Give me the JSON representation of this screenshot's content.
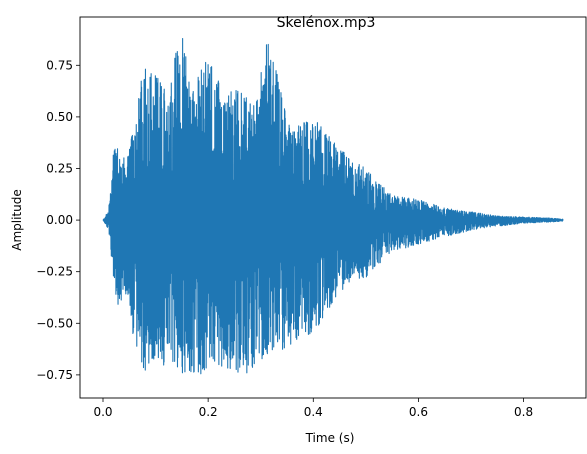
{
  "chart_data": {
    "type": "line",
    "title": "Skelénox.mp3",
    "xlabel": "Time (s)",
    "ylabel": "Amplitude",
    "xlim": [
      -0.04375,
      0.91875
    ],
    "ylim": [
      -0.862,
      0.984
    ],
    "x_ticks": [
      0.0,
      0.2,
      0.4,
      0.6,
      0.8
    ],
    "x_tick_labels": [
      "0.0",
      "0.2",
      "0.4",
      "0.6",
      "0.8"
    ],
    "y_ticks": [
      -0.75,
      -0.5,
      -0.25,
      0.0,
      0.25,
      0.5,
      0.75
    ],
    "y_tick_labels": [
      "−0.75",
      "−0.50",
      "−0.25",
      "0.00",
      "0.25",
      "0.50",
      "0.75"
    ],
    "grid": false,
    "legend": "none",
    "series": [
      {
        "color": "#1f77b4",
        "duration": 0.875,
        "envelope_pos": [
          [
            0.0,
            0.0
          ],
          [
            0.005,
            0.02
          ],
          [
            0.01,
            0.05
          ],
          [
            0.015,
            0.15
          ],
          [
            0.02,
            0.38
          ],
          [
            0.025,
            0.41
          ],
          [
            0.035,
            0.3
          ],
          [
            0.05,
            0.34
          ],
          [
            0.065,
            0.56
          ],
          [
            0.08,
            0.8
          ],
          [
            0.1,
            0.7
          ],
          [
            0.12,
            0.66
          ],
          [
            0.15,
            0.91
          ],
          [
            0.17,
            0.63
          ],
          [
            0.2,
            0.82
          ],
          [
            0.23,
            0.6
          ],
          [
            0.26,
            0.65
          ],
          [
            0.29,
            0.55
          ],
          [
            0.31,
            0.89
          ],
          [
            0.33,
            0.75
          ],
          [
            0.36,
            0.45
          ],
          [
            0.4,
            0.5
          ],
          [
            0.45,
            0.35
          ],
          [
            0.5,
            0.25
          ],
          [
            0.55,
            0.12
          ],
          [
            0.6,
            0.1
          ],
          [
            0.65,
            0.06
          ],
          [
            0.7,
            0.04
          ],
          [
            0.75,
            0.02
          ],
          [
            0.8,
            0.015
          ],
          [
            0.85,
            0.01
          ],
          [
            0.875,
            0.005
          ]
        ],
        "envelope_neg": [
          [
            0.0,
            0.0
          ],
          [
            0.005,
            -0.02
          ],
          [
            0.01,
            -0.05
          ],
          [
            0.015,
            -0.15
          ],
          [
            0.02,
            -0.3
          ],
          [
            0.03,
            -0.44
          ],
          [
            0.04,
            -0.35
          ],
          [
            0.05,
            -0.45
          ],
          [
            0.065,
            -0.67
          ],
          [
            0.08,
            -0.74
          ],
          [
            0.1,
            -0.68
          ],
          [
            0.12,
            -0.72
          ],
          [
            0.15,
            -0.74
          ],
          [
            0.18,
            -0.77
          ],
          [
            0.21,
            -0.7
          ],
          [
            0.24,
            -0.72
          ],
          [
            0.27,
            -0.76
          ],
          [
            0.3,
            -0.68
          ],
          [
            0.33,
            -0.65
          ],
          [
            0.36,
            -0.6
          ],
          [
            0.4,
            -0.55
          ],
          [
            0.45,
            -0.35
          ],
          [
            0.5,
            -0.28
          ],
          [
            0.55,
            -0.15
          ],
          [
            0.6,
            -0.12
          ],
          [
            0.65,
            -0.08
          ],
          [
            0.7,
            -0.05
          ],
          [
            0.75,
            -0.03
          ],
          [
            0.8,
            -0.015
          ],
          [
            0.85,
            -0.01
          ],
          [
            0.875,
            -0.005
          ]
        ]
      }
    ]
  }
}
